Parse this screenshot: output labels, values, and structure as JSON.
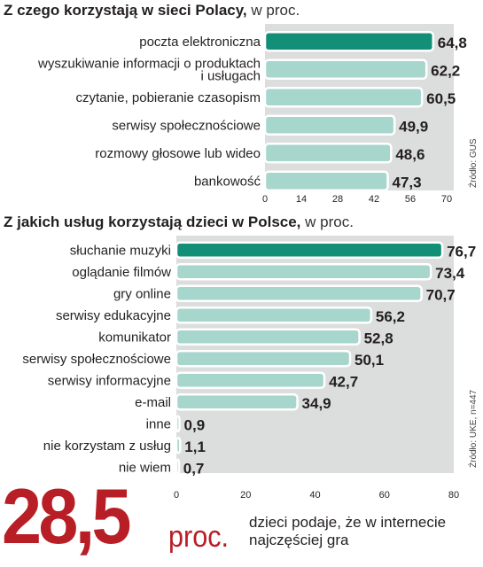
{
  "headline": {
    "value": "28,5",
    "unit": "proc.",
    "caption_line1": "dzieci podaje, że w internecie",
    "caption_line2": "najczęściej gra"
  },
  "colors": {
    "highlight": "#148f77",
    "bar": "#a6d6cc",
    "panel": "#dcdedd",
    "accent_red": "#b81e25"
  },
  "chart_data": [
    {
      "type": "bar",
      "orientation": "horizontal",
      "title": "Z czego korzystają w sieci Polacy,",
      "subtitle": "w proc.",
      "source": "Źródło: GUS",
      "categories": [
        [
          "poczta elektroniczna"
        ],
        [
          "wyszukiwanie informacji o produktach",
          "i usługach"
        ],
        [
          "czytanie, pobieranie czasopism"
        ],
        [
          "serwisy społecznościowe"
        ],
        [
          "rozmowy głosowe lub wideo"
        ],
        [
          "bankowość"
        ]
      ],
      "values": [
        64.8,
        62.2,
        60.5,
        49.9,
        48.6,
        47.3
      ],
      "value_labels": [
        "64,8",
        "62,2",
        "60,5",
        "49,9",
        "48,6",
        "47,3"
      ],
      "highlight_index": 0,
      "xlim": [
        0,
        70
      ],
      "xticks": [
        0,
        14,
        28,
        42,
        56,
        70
      ],
      "xtick_labels": [
        "0",
        "14",
        "28",
        "42",
        "56",
        "70"
      ],
      "grid": false
    },
    {
      "type": "bar",
      "orientation": "horizontal",
      "title": "Z jakich usług korzystają dzieci w Polsce,",
      "subtitle": "w proc.",
      "source": "Źródło: UKE, n=447",
      "categories": [
        [
          "słuchanie muzyki"
        ],
        [
          "oglądanie filmów"
        ],
        [
          "gry online"
        ],
        [
          "serwisy edukacyjne"
        ],
        [
          "komunikator"
        ],
        [
          "serwisy społecznościowe"
        ],
        [
          "serwisy informacyjne"
        ],
        [
          "e-mail"
        ],
        [
          "inne"
        ],
        [
          "nie korzystam z usług"
        ],
        [
          "nie wiem"
        ]
      ],
      "values": [
        76.7,
        73.4,
        70.7,
        56.2,
        52.8,
        50.1,
        42.7,
        34.9,
        0.9,
        1.1,
        0.7
      ],
      "value_labels": [
        "76,7",
        "73,4",
        "70,7",
        "56,2",
        "52,8",
        "50,1",
        "42,7",
        "34,9",
        "0,9",
        "1,1",
        "0,7"
      ],
      "highlight_index": 0,
      "xlim": [
        0,
        80
      ],
      "xticks": [
        0,
        20,
        40,
        60,
        80
      ],
      "xtick_labels": [
        "0",
        "20",
        "40",
        "60",
        "80"
      ],
      "grid": false
    }
  ]
}
